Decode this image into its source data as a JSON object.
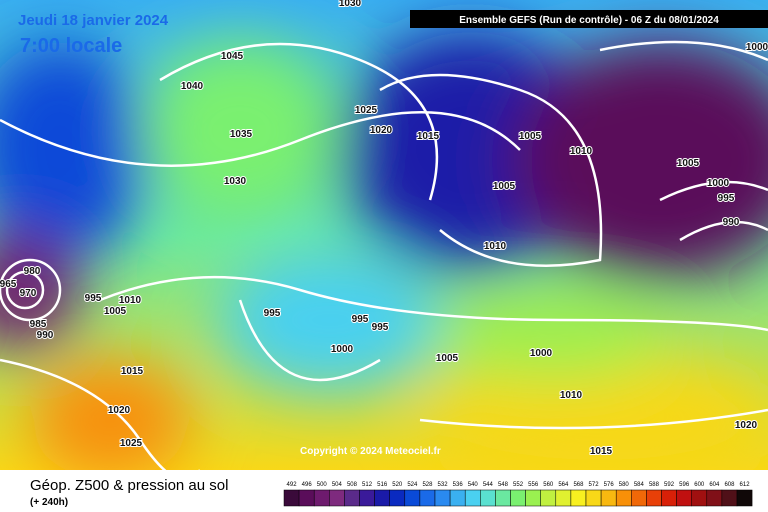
{
  "header": {
    "date": "Jeudi 18 janvier 2024",
    "time": "7:00 locale",
    "model": "Ensemble GEFS  (Run de contrôle)  -  06 Z du 08/01/2024"
  },
  "isobar_labels": [
    1030,
    1045,
    1040,
    1035,
    1030,
    1025,
    1020,
    1015,
    1005,
    1010,
    1005,
    1005,
    1000,
    995,
    990,
    1000,
    1010,
    980,
    965,
    970,
    995,
    1010,
    1005,
    985,
    990,
    995,
    995,
    995,
    1000,
    1005,
    1000,
    1010,
    1015,
    1020,
    1025,
    1020,
    1015
  ],
  "copyright": "Copyright © 2024 Meteociel.fr",
  "footer": {
    "title": "Géop. Z500 & pression au sol",
    "subtitle": "(+ 240h)"
  },
  "legend": {
    "values": [
      492,
      496,
      500,
      504,
      508,
      512,
      516,
      520,
      524,
      528,
      532,
      536,
      540,
      544,
      548,
      552,
      556,
      560,
      564,
      568,
      572,
      576,
      580,
      584,
      588,
      592,
      596,
      600,
      604,
      608,
      612
    ],
    "colors": [
      "#3a0a3a",
      "#5a0d5a",
      "#6e1a6e",
      "#7e2a7e",
      "#5a2a8a",
      "#3a1a9a",
      "#1a1aa8",
      "#0a2ac0",
      "#0a4ad8",
      "#1a6ae8",
      "#2a8af0",
      "#3ab0f0",
      "#4ad0f0",
      "#5ae0d0",
      "#6ae8a0",
      "#7af070",
      "#9af050",
      "#c0f040",
      "#e0f030",
      "#f8f020",
      "#f8d818",
      "#f8b810",
      "#f89008",
      "#f06808",
      "#e84008",
      "#d82008",
      "#c01010",
      "#a01010",
      "#801018",
      "#501018",
      "#100808"
    ]
  }
}
